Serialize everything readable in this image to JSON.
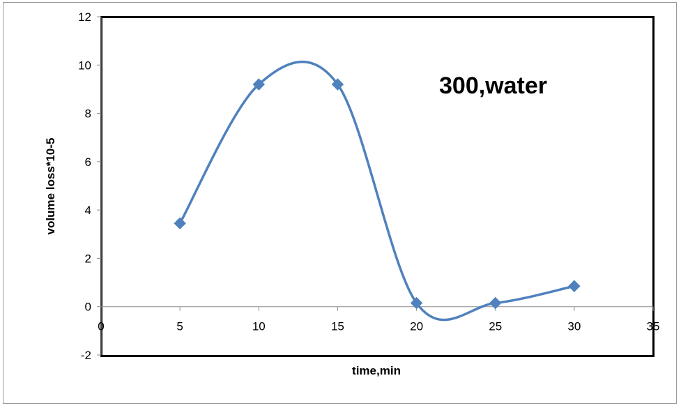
{
  "chart_data": {
    "type": "line",
    "title": "",
    "xlabel": "time,min",
    "ylabel": "volume loss*10-5",
    "xlim": [
      0,
      35
    ],
    "ylim": [
      -2,
      12
    ],
    "x_ticks": [
      0,
      5,
      10,
      15,
      20,
      25,
      30,
      35
    ],
    "y_ticks": [
      -2,
      0,
      2,
      4,
      6,
      8,
      10,
      12
    ],
    "x_tick_labels": [
      "0",
      "5",
      "10",
      "15",
      "20",
      "25",
      "30",
      "35"
    ],
    "y_tick_labels": [
      "-2",
      "0",
      "2",
      "4",
      "6",
      "8",
      "10",
      "12"
    ],
    "grid": false,
    "smooth": true,
    "marker": "diamond",
    "series": [
      {
        "color": "#4f81bd",
        "x": [
          5,
          10,
          15,
          20,
          25,
          30
        ],
        "y": [
          3.45,
          9.2,
          9.2,
          0.15,
          0.15,
          0.85
        ]
      }
    ],
    "annotation": "300,water"
  }
}
